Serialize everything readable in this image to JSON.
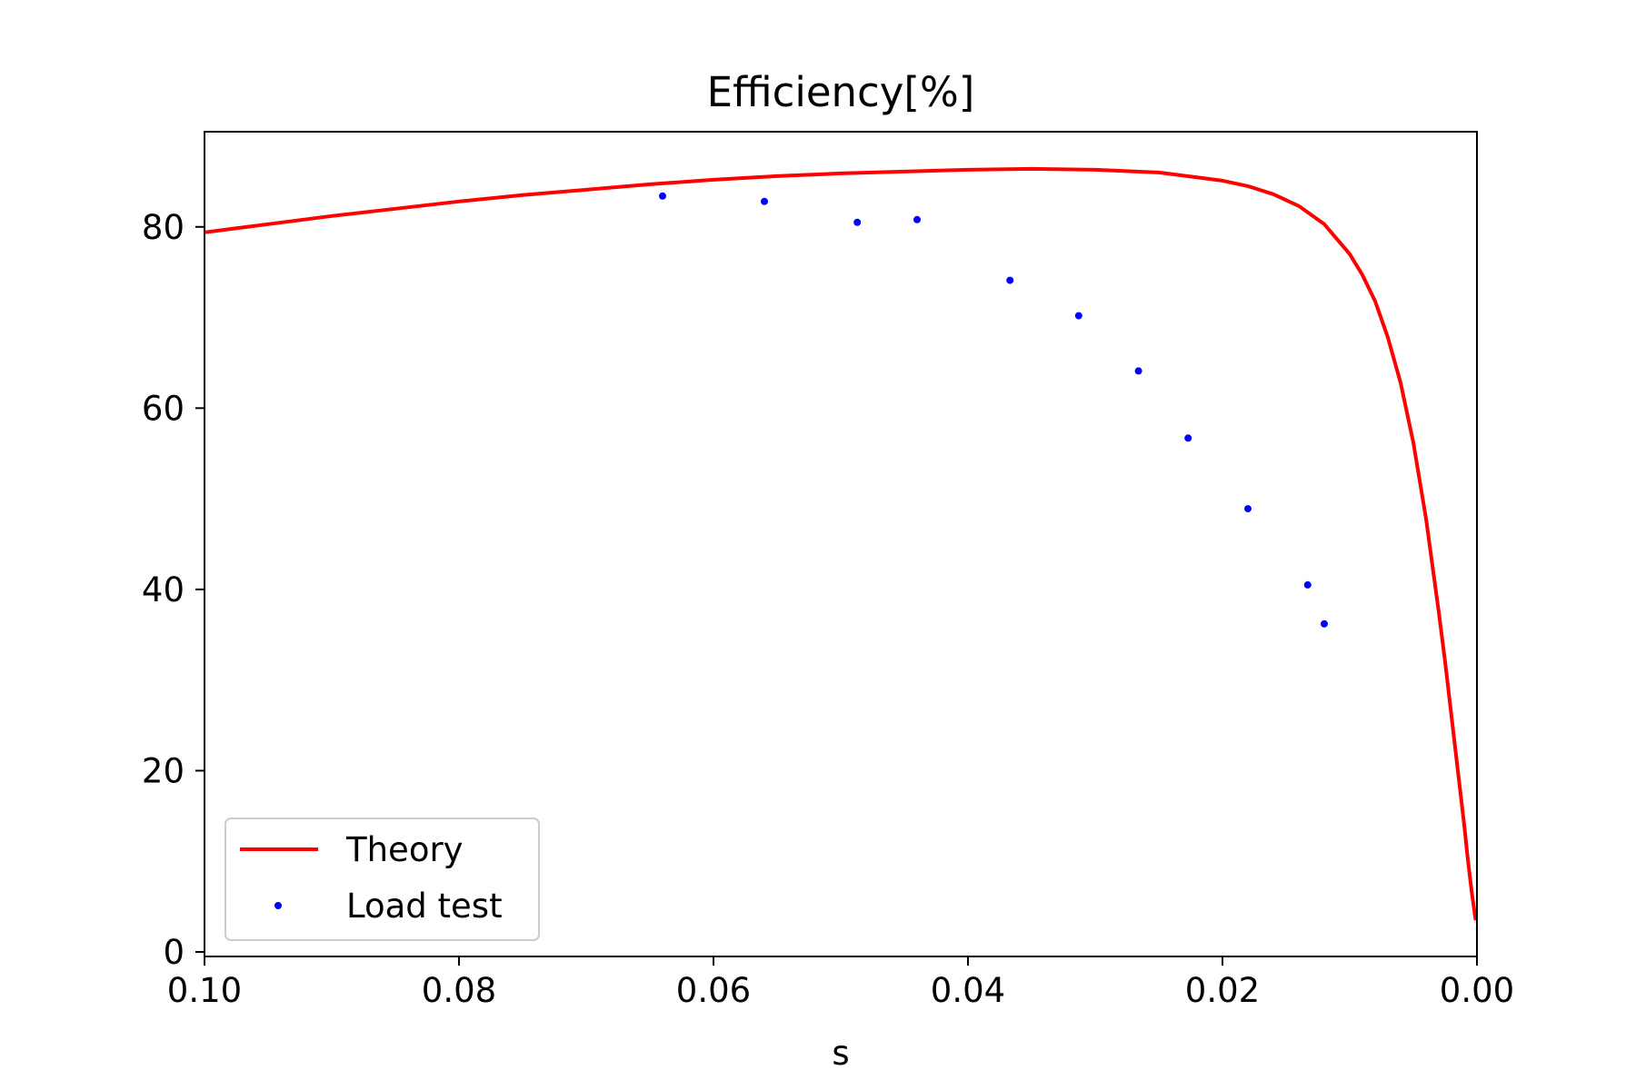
{
  "chart_data": {
    "type": "line",
    "title": "Efficiency[%]",
    "xlabel": "s",
    "ylabel": "",
    "xlim": [
      0.1,
      0.0
    ],
    "ylim": [
      -0.5,
      90.5
    ],
    "x_inverted": true,
    "grid": false,
    "legend_position": "lower-left",
    "x_ticks": [
      {
        "value": 0.1,
        "label": "0.10"
      },
      {
        "value": 0.08,
        "label": "0.08"
      },
      {
        "value": 0.06,
        "label": "0.06"
      },
      {
        "value": 0.04,
        "label": "0.04"
      },
      {
        "value": 0.02,
        "label": "0.02"
      },
      {
        "value": 0.0,
        "label": "0.00"
      }
    ],
    "y_ticks": [
      {
        "value": 0,
        "label": "0"
      },
      {
        "value": 20,
        "label": "20"
      },
      {
        "value": 40,
        "label": "40"
      },
      {
        "value": 60,
        "label": "60"
      },
      {
        "value": 80,
        "label": "80"
      }
    ],
    "series": [
      {
        "name": "Theory",
        "kind": "line",
        "color": "#ff0000",
        "x": [
          0.1,
          0.095,
          0.09,
          0.085,
          0.08,
          0.075,
          0.07,
          0.065,
          0.06,
          0.055,
          0.05,
          0.045,
          0.04,
          0.035,
          0.03,
          0.025,
          0.02,
          0.018,
          0.016,
          0.014,
          0.012,
          0.01,
          0.009,
          0.008,
          0.007,
          0.006,
          0.005,
          0.004,
          0.003,
          0.0025,
          0.002,
          0.0015,
          0.001,
          0.0007,
          0.0004,
          0.0002,
          0.0001
        ],
        "y": [
          79.4,
          80.3,
          81.2,
          82.0,
          82.8,
          83.5,
          84.1,
          84.7,
          85.2,
          85.6,
          85.9,
          86.1,
          86.3,
          86.4,
          86.3,
          86.0,
          85.1,
          84.5,
          83.6,
          82.3,
          80.3,
          77.0,
          74.7,
          71.8,
          67.8,
          62.8,
          56.2,
          47.8,
          37.5,
          32.0,
          26.0,
          20.0,
          14.0,
          10.0,
          6.5,
          4.5,
          3.5
        ]
      },
      {
        "name": "Load test",
        "kind": "scatter",
        "color": "#0000ff",
        "x": [
          0.064,
          0.056,
          0.0487,
          0.044,
          0.0367,
          0.0313,
          0.0266,
          0.0227,
          0.018,
          0.0133,
          0.012
        ],
        "y": [
          83.4,
          82.8,
          80.5,
          80.8,
          74.1,
          70.2,
          64.1,
          56.7,
          48.9,
          40.5,
          36.2
        ]
      }
    ]
  }
}
